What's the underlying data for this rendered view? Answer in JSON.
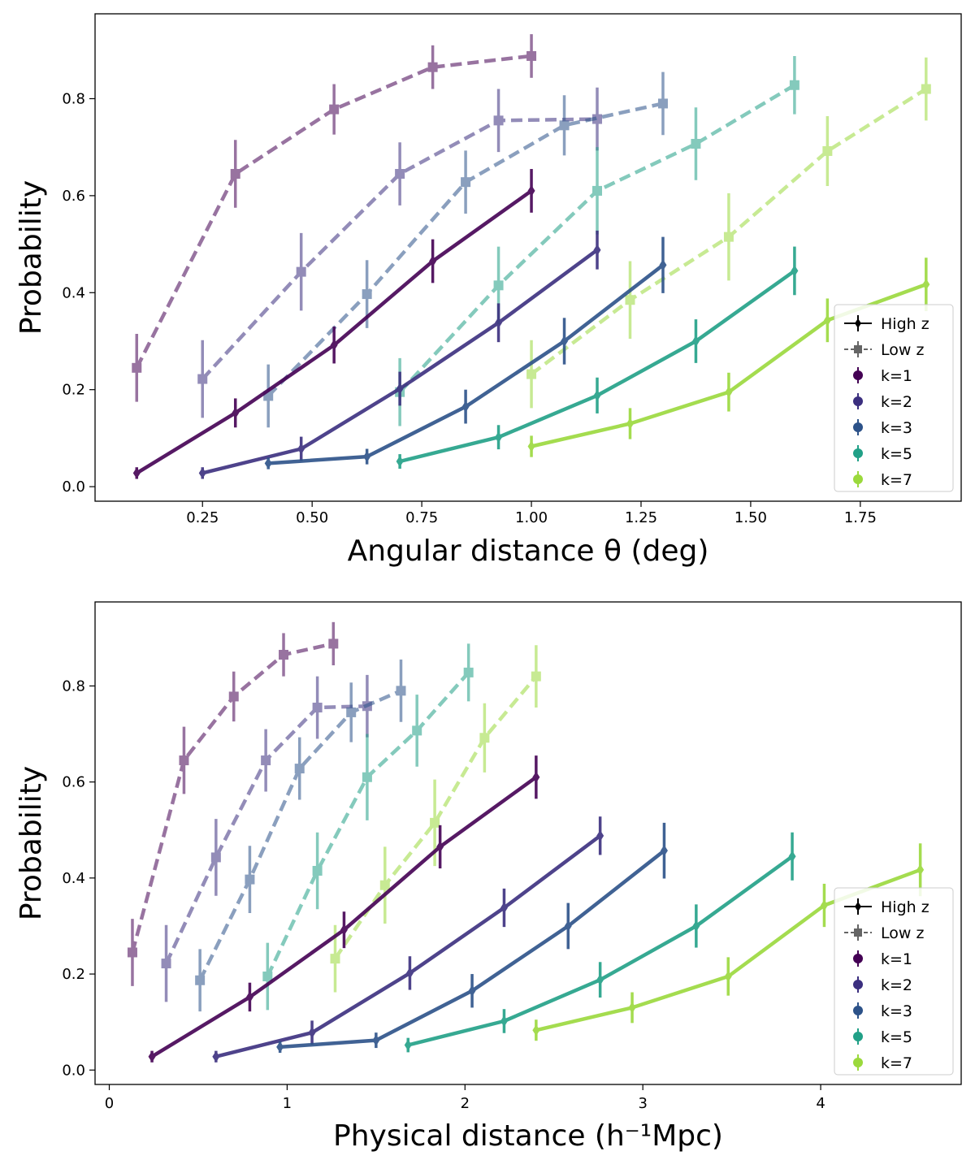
{
  "chart_data": [
    {
      "type": "line",
      "xlabel": "Angular distance θ (deg)",
      "ylabel": "Probability",
      "xlim": [
        0.005,
        1.98
      ],
      "ylim": [
        -0.03,
        0.975
      ],
      "xticks": [
        "0.25",
        "0.50",
        "0.75",
        "1.00",
        "1.25",
        "1.50",
        "1.75"
      ],
      "yticks": [
        "0.0",
        "0.2",
        "0.4",
        "0.6",
        "0.8"
      ],
      "legend_position": "lower-right",
      "legend": [
        "High z",
        "Low z",
        "k=1",
        "k=2",
        "k=3",
        "k=5",
        "k=7"
      ],
      "series": [
        {
          "name": "k=1",
          "z": "High z",
          "color": "#440154",
          "x": [
            0.1,
            0.325,
            0.55,
            0.775,
            1.0
          ],
          "y": [
            0.028,
            0.152,
            0.292,
            0.465,
            0.61
          ],
          "err": [
            0.012,
            0.03,
            0.038,
            0.045,
            0.045
          ]
        },
        {
          "name": "k=2",
          "z": "High z",
          "color": "#3b2f7f",
          "x": [
            0.25,
            0.475,
            0.7,
            0.925,
            1.15
          ],
          "y": [
            0.028,
            0.078,
            0.202,
            0.338,
            0.488
          ],
          "err": [
            0.012,
            0.025,
            0.035,
            0.04,
            0.04
          ]
        },
        {
          "name": "k=3",
          "z": "High z",
          "color": "#2c5289",
          "x": [
            0.4,
            0.625,
            0.85,
            1.075,
            1.3
          ],
          "y": [
            0.048,
            0.062,
            0.165,
            0.3,
            0.457
          ],
          "err": [
            0.012,
            0.016,
            0.035,
            0.048,
            0.058
          ]
        },
        {
          "name": "k=5",
          "z": "High z",
          "color": "#21a087",
          "x": [
            0.7,
            0.925,
            1.15,
            1.375,
            1.6
          ],
          "y": [
            0.052,
            0.102,
            0.188,
            0.3,
            0.445
          ],
          "err": [
            0.015,
            0.025,
            0.037,
            0.045,
            0.05
          ]
        },
        {
          "name": "k=7",
          "z": "High z",
          "color": "#9bd93c",
          "x": [
            1.0,
            1.225,
            1.45,
            1.675,
            1.9
          ],
          "y": [
            0.083,
            0.13,
            0.195,
            0.343,
            0.417
          ],
          "err": [
            0.022,
            0.032,
            0.04,
            0.045,
            0.055
          ]
        },
        {
          "name": "k=1",
          "z": "Low z",
          "color": "#440154",
          "x": [
            0.1,
            0.325,
            0.55,
            0.775,
            1.0
          ],
          "y": [
            0.245,
            0.645,
            0.778,
            0.865,
            0.888
          ],
          "err": [
            0.07,
            0.07,
            0.052,
            0.045,
            0.045
          ]
        },
        {
          "name": "k=2",
          "z": "Low z",
          "color": "#3b2f7f",
          "x": [
            0.25,
            0.475,
            0.7,
            0.925,
            1.15
          ],
          "y": [
            0.222,
            0.443,
            0.645,
            0.755,
            0.758
          ],
          "err": [
            0.08,
            0.08,
            0.065,
            0.065,
            0.065
          ]
        },
        {
          "name": "k=3",
          "z": "Low z",
          "color": "#2c5289",
          "x": [
            0.4,
            0.625,
            0.85,
            1.075,
            1.3
          ],
          "y": [
            0.187,
            0.397,
            0.628,
            0.745,
            0.79
          ],
          "err": [
            0.065,
            0.07,
            0.065,
            0.062,
            0.065
          ]
        },
        {
          "name": "k=5",
          "z": "Low z",
          "color": "#21a087",
          "x": [
            0.7,
            0.925,
            1.15,
            1.375,
            1.6
          ],
          "y": [
            0.195,
            0.415,
            0.61,
            0.707,
            0.828
          ],
          "err": [
            0.07,
            0.08,
            0.09,
            0.075,
            0.06
          ]
        },
        {
          "name": "k=7",
          "z": "Low z",
          "color": "#9bd93c",
          "x": [
            1.0,
            1.225,
            1.45,
            1.675,
            1.9
          ],
          "y": [
            0.232,
            0.385,
            0.515,
            0.692,
            0.82
          ],
          "err": [
            0.07,
            0.08,
            0.09,
            0.072,
            0.065
          ]
        }
      ]
    },
    {
      "type": "line",
      "xlabel": "Physical distance (h⁻¹Mpc)",
      "ylabel": "Probability",
      "xlim": [
        -0.08,
        4.79
      ],
      "ylim": [
        -0.03,
        0.975
      ],
      "xticks": [
        "0",
        "1",
        "2",
        "3",
        "4"
      ],
      "yticks": [
        "0.0",
        "0.2",
        "0.4",
        "0.6",
        "0.8"
      ],
      "legend_position": "lower-right",
      "legend": [
        "High z",
        "Low z",
        "k=1",
        "k=2",
        "k=3",
        "k=5",
        "k=7"
      ],
      "series": [
        {
          "name": "k=1",
          "z": "High z",
          "color": "#440154",
          "x": [
            0.24,
            0.79,
            1.32,
            1.86,
            2.4
          ],
          "y": [
            0.028,
            0.152,
            0.292,
            0.465,
            0.61
          ],
          "err": [
            0.012,
            0.03,
            0.038,
            0.045,
            0.045
          ]
        },
        {
          "name": "k=2",
          "z": "High z",
          "color": "#3b2f7f",
          "x": [
            0.6,
            1.14,
            1.69,
            2.22,
            2.76
          ],
          "y": [
            0.028,
            0.078,
            0.202,
            0.338,
            0.488
          ],
          "err": [
            0.012,
            0.025,
            0.035,
            0.04,
            0.04
          ]
        },
        {
          "name": "k=3",
          "z": "High z",
          "color": "#2c5289",
          "x": [
            0.96,
            1.5,
            2.04,
            2.58,
            3.12
          ],
          "y": [
            0.048,
            0.062,
            0.165,
            0.3,
            0.457
          ],
          "err": [
            0.012,
            0.016,
            0.035,
            0.048,
            0.058
          ]
        },
        {
          "name": "k=5",
          "z": "High z",
          "color": "#21a087",
          "x": [
            1.68,
            2.22,
            2.76,
            3.3,
            3.84
          ],
          "y": [
            0.052,
            0.102,
            0.188,
            0.3,
            0.445
          ],
          "err": [
            0.015,
            0.025,
            0.037,
            0.045,
            0.05
          ]
        },
        {
          "name": "k=7",
          "z": "High z",
          "color": "#9bd93c",
          "x": [
            2.4,
            2.94,
            3.48,
            4.02,
            4.56
          ],
          "y": [
            0.083,
            0.13,
            0.195,
            0.343,
            0.417
          ],
          "err": [
            0.022,
            0.032,
            0.04,
            0.045,
            0.055
          ]
        },
        {
          "name": "k=1",
          "z": "Low z",
          "color": "#440154",
          "x": [
            0.13,
            0.42,
            0.7,
            0.98,
            1.26
          ],
          "y": [
            0.245,
            0.645,
            0.778,
            0.865,
            0.888
          ],
          "err": [
            0.07,
            0.07,
            0.052,
            0.045,
            0.045
          ]
        },
        {
          "name": "k=2",
          "z": "Low z",
          "color": "#3b2f7f",
          "x": [
            0.32,
            0.6,
            0.88,
            1.17,
            1.45
          ],
          "y": [
            0.222,
            0.443,
            0.645,
            0.755,
            0.758
          ],
          "err": [
            0.08,
            0.08,
            0.065,
            0.065,
            0.065
          ]
        },
        {
          "name": "k=3",
          "z": "Low z",
          "color": "#2c5289",
          "x": [
            0.51,
            0.79,
            1.07,
            1.36,
            1.64
          ],
          "y": [
            0.187,
            0.397,
            0.628,
            0.745,
            0.79
          ],
          "err": [
            0.065,
            0.07,
            0.065,
            0.062,
            0.065
          ]
        },
        {
          "name": "k=5",
          "z": "Low z",
          "color": "#21a087",
          "x": [
            0.89,
            1.17,
            1.45,
            1.73,
            2.02
          ],
          "y": [
            0.195,
            0.415,
            0.61,
            0.707,
            0.828
          ],
          "err": [
            0.07,
            0.08,
            0.09,
            0.075,
            0.06
          ]
        },
        {
          "name": "k=7",
          "z": "Low z",
          "color": "#9bd93c",
          "x": [
            1.27,
            1.55,
            1.83,
            2.11,
            2.4
          ],
          "y": [
            0.232,
            0.385,
            0.515,
            0.692,
            0.82
          ],
          "err": [
            0.07,
            0.08,
            0.09,
            0.072,
            0.065
          ]
        }
      ]
    }
  ]
}
